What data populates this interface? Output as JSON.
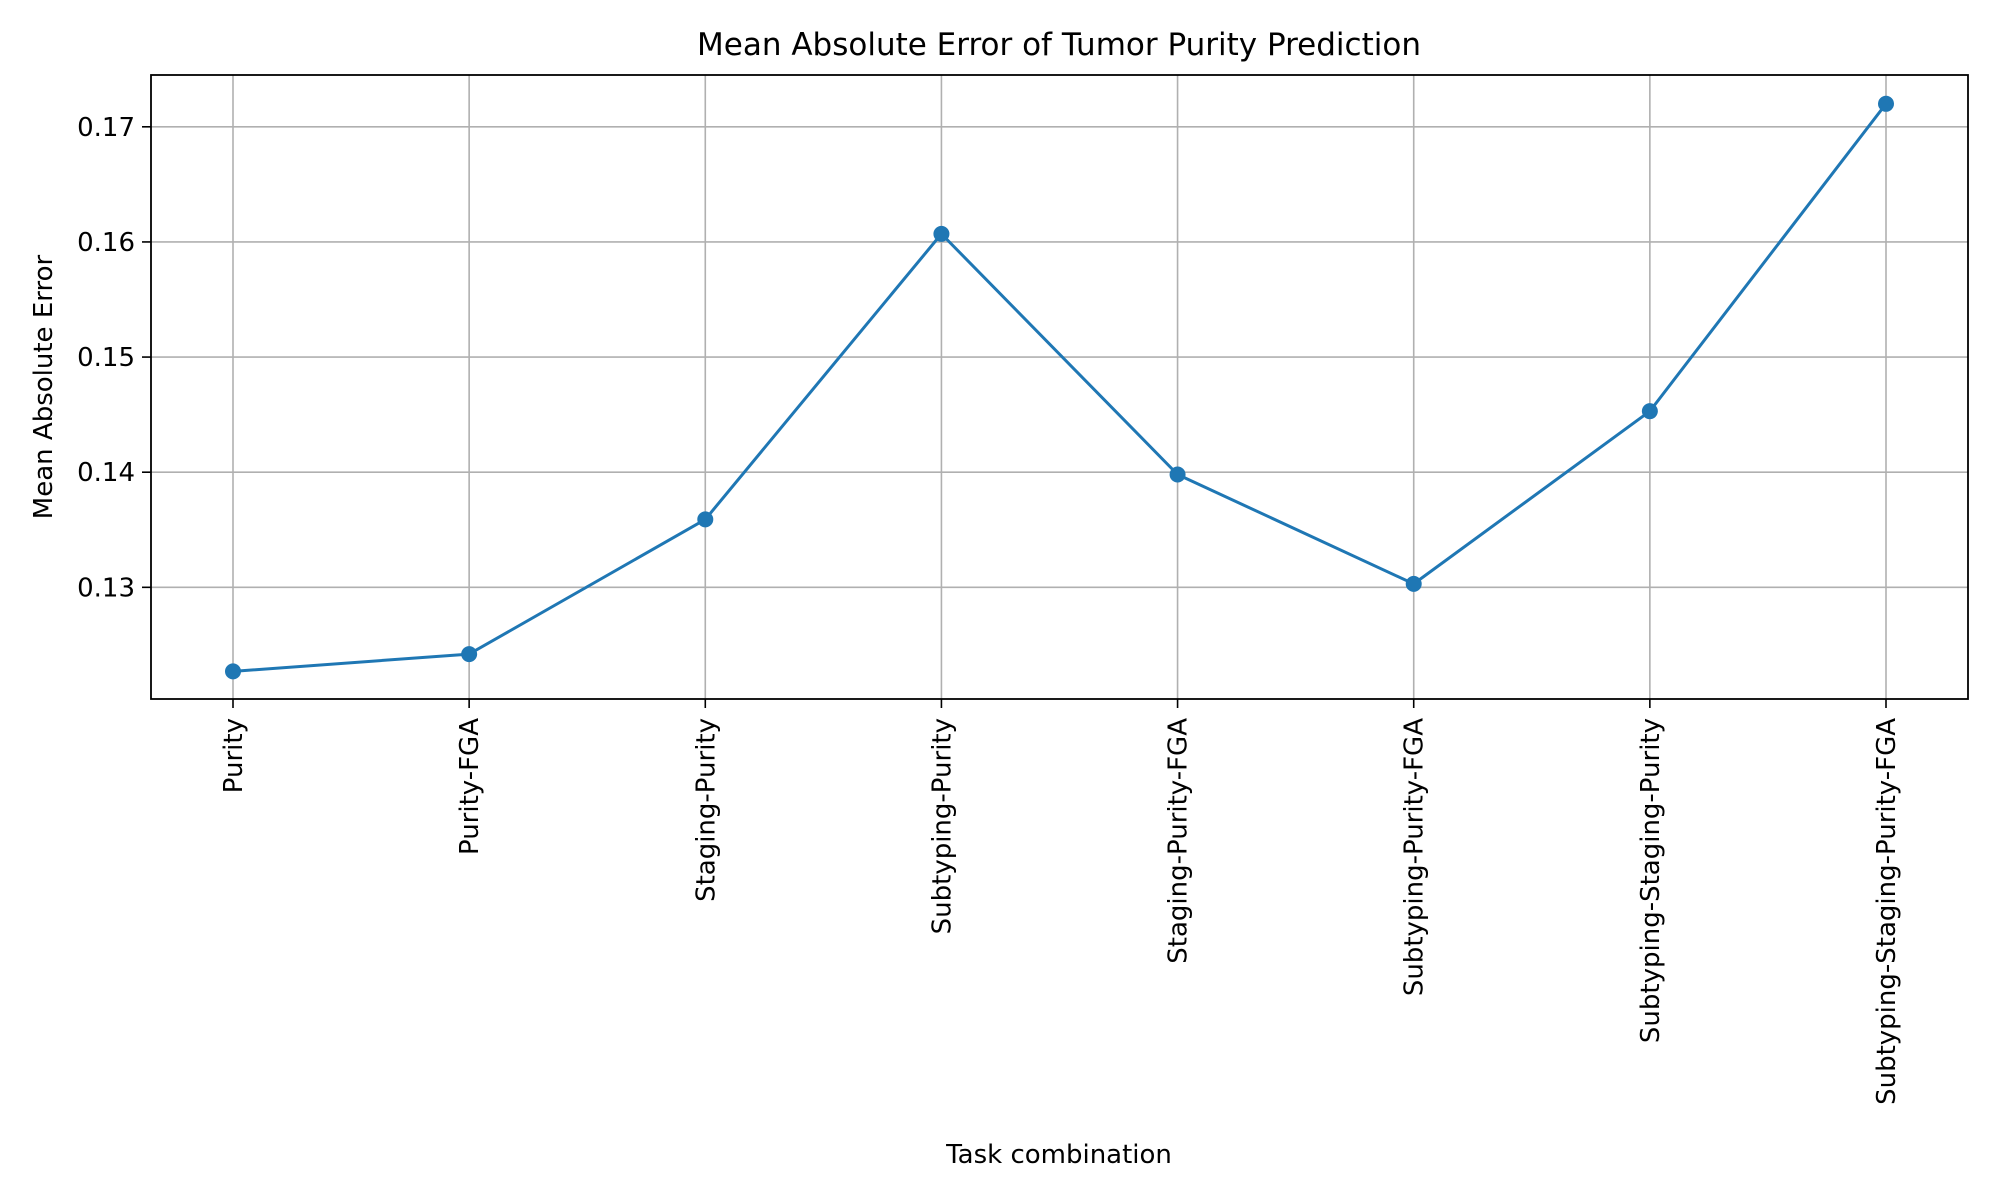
{
  "chart_data": {
    "type": "line",
    "title": "Mean Absolute Error of Tumor Purity Prediction",
    "xlabel": "Task combination",
    "ylabel": "Mean Absolute Error",
    "categories": [
      "Purity",
      "Purity-FGA",
      "Staging-Purity",
      "Subtyping-Purity",
      "Staging-Purity-FGA",
      "Subtyping-Purity-FGA",
      "Subtyping-Staging-Purity",
      "Subtyping-Staging-Purity-FGA"
    ],
    "series": [
      {
        "values": [
          0.1227,
          0.1242,
          0.1359,
          0.1607,
          0.1398,
          0.1303,
          0.1453,
          0.172
        ],
        "color": "#1f77b4",
        "marker": "circle"
      }
    ],
    "yticks": [
      0.13,
      0.14,
      0.15,
      0.16,
      0.17
    ],
    "ytick_labels": [
      "0.13",
      "0.14",
      "0.15",
      "0.16",
      "0.17"
    ],
    "ylim": [
      0.1203,
      0.1745
    ],
    "grid": true,
    "legend": false
  }
}
